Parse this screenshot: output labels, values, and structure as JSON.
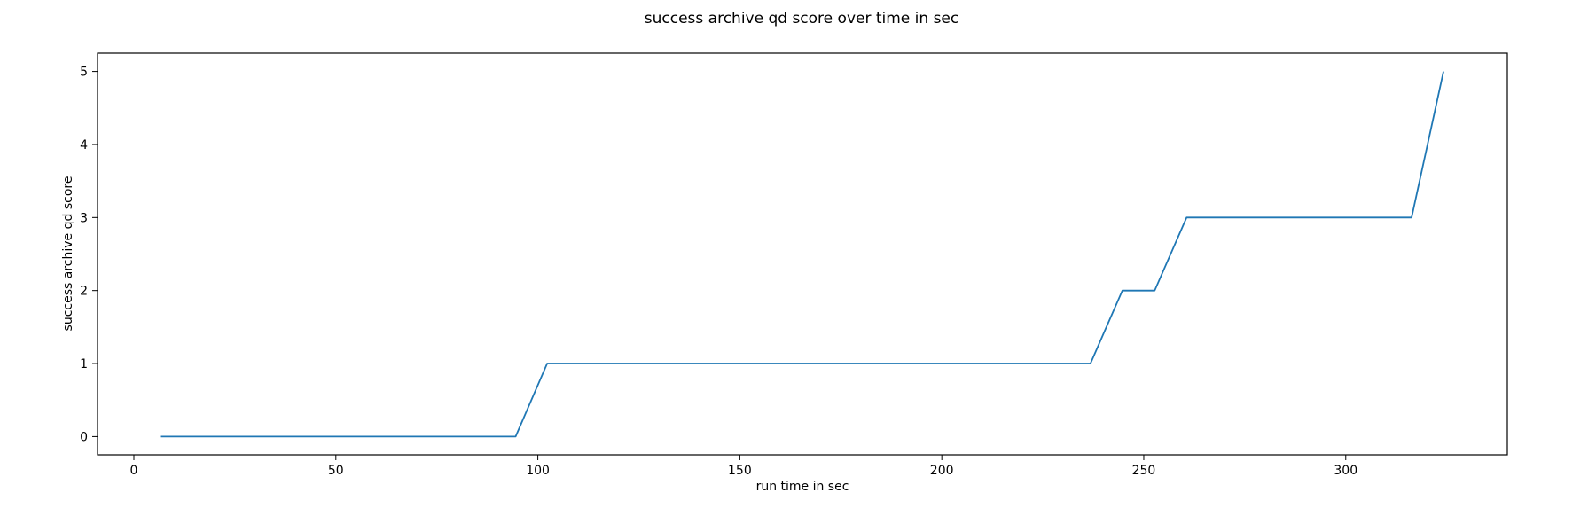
{
  "chart_data": {
    "type": "line",
    "title": "success archive qd score over time in sec",
    "xlabel": "run time in sec",
    "ylabel": "success archive qd score",
    "xlim": [
      -9,
      340
    ],
    "ylim": [
      -0.25,
      5.25
    ],
    "xticks": [
      0,
      50,
      100,
      150,
      200,
      250,
      300
    ],
    "yticks": [
      0,
      1,
      2,
      3,
      4,
      5
    ],
    "grid": false,
    "series": [
      {
        "color": "#1f77b4",
        "x": [
          6.7,
          94.5,
          102.3,
          236.8,
          244.7,
          252.7,
          260.6,
          316.3,
          324.2
        ],
        "y": [
          0,
          0,
          1,
          1,
          2,
          2,
          3,
          3,
          5
        ]
      }
    ]
  }
}
